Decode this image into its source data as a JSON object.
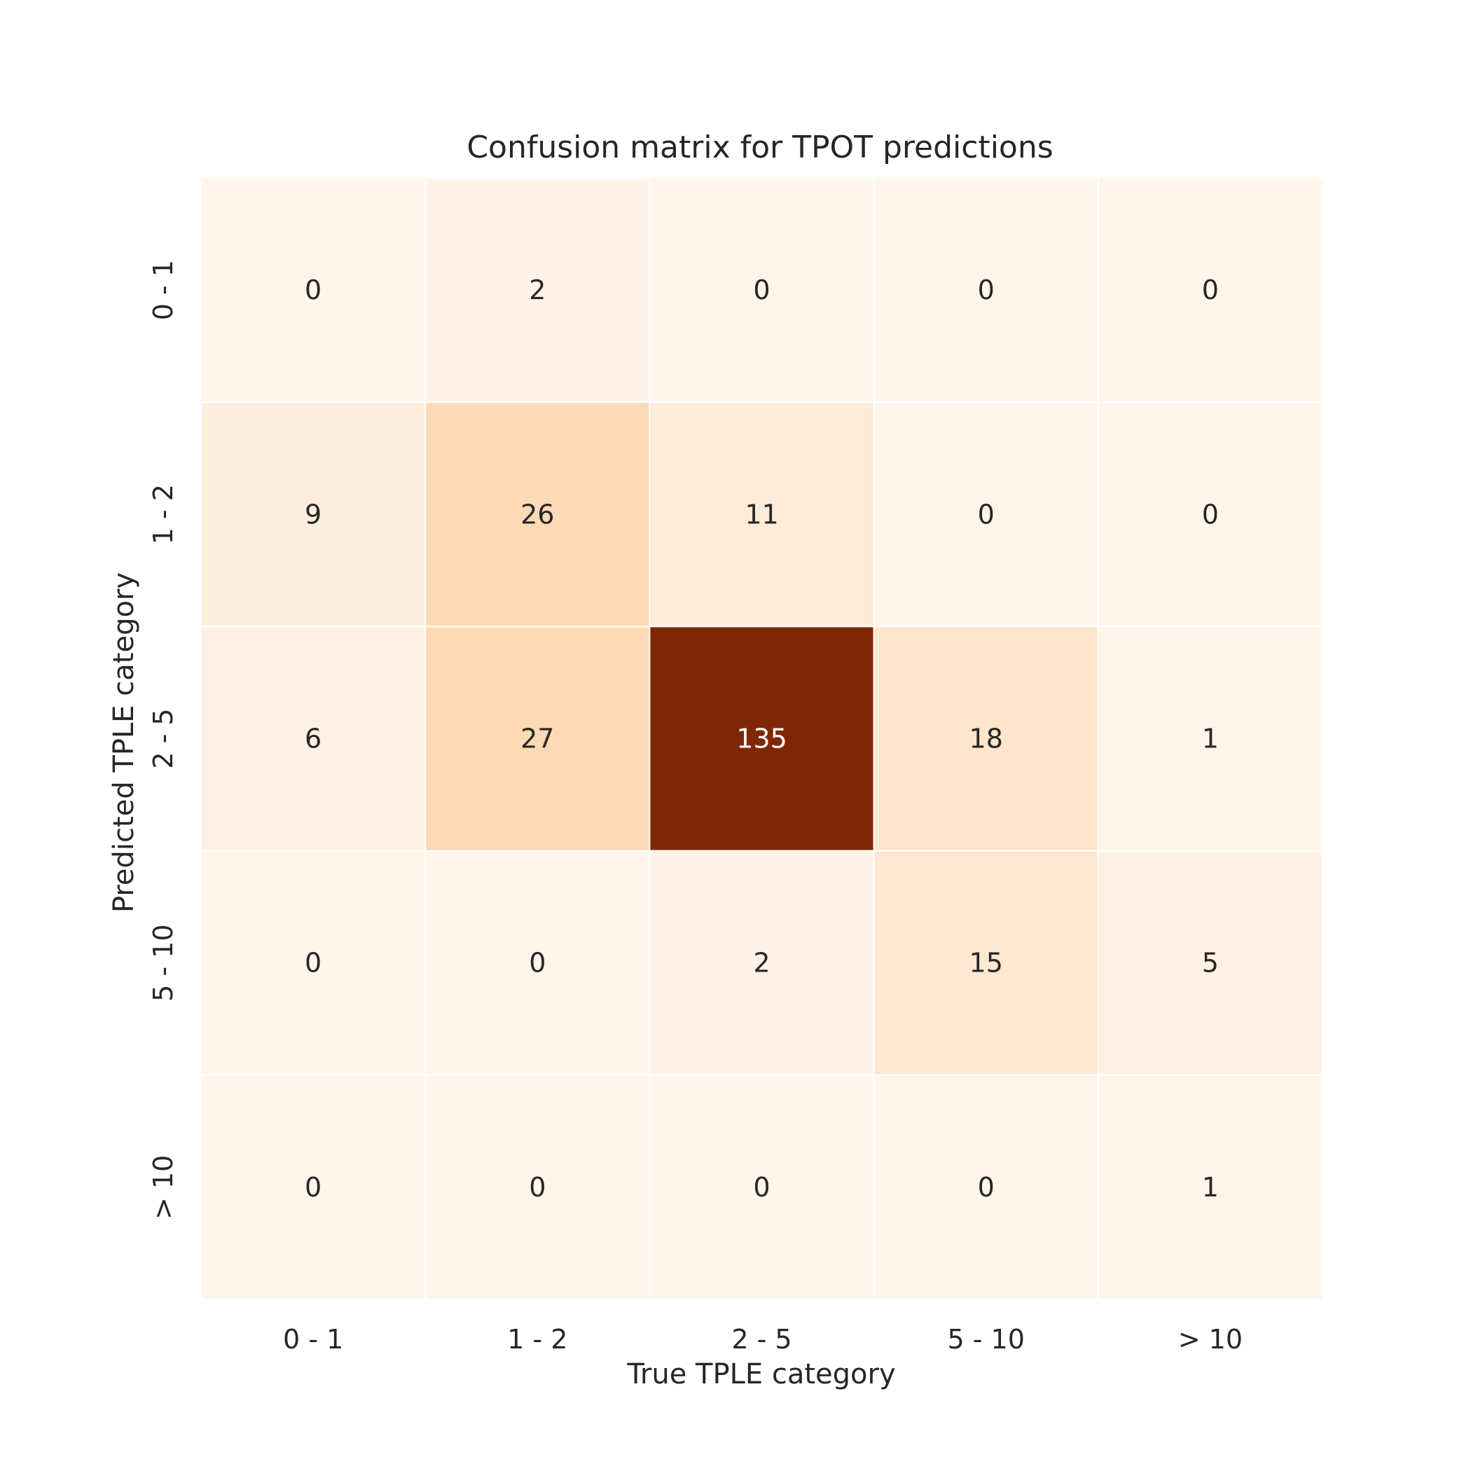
{
  "chart_data": {
    "type": "heatmap",
    "title": "Confusion matrix for TPOT predictions",
    "xlabel": "True TPLE category",
    "ylabel": "Predicted TPLE category",
    "x_categories": [
      "0 - 1",
      "1 - 2",
      "2 - 5",
      "5 - 10",
      "> 10"
    ],
    "y_categories": [
      "0 - 1",
      "1 - 2",
      "2 - 5",
      "5 - 10",
      "> 10"
    ],
    "values": [
      [
        0,
        2,
        0,
        0,
        0
      ],
      [
        9,
        26,
        11,
        0,
        0
      ],
      [
        6,
        27,
        135,
        18,
        1
      ],
      [
        0,
        0,
        2,
        15,
        5
      ],
      [
        0,
        0,
        0,
        0,
        1
      ]
    ],
    "colormap": "Oranges",
    "color_low": "#fff5eb",
    "color_high": "#7f2704",
    "vmin": 0,
    "vmax": 135,
    "annotated": true,
    "colorbar": false
  }
}
